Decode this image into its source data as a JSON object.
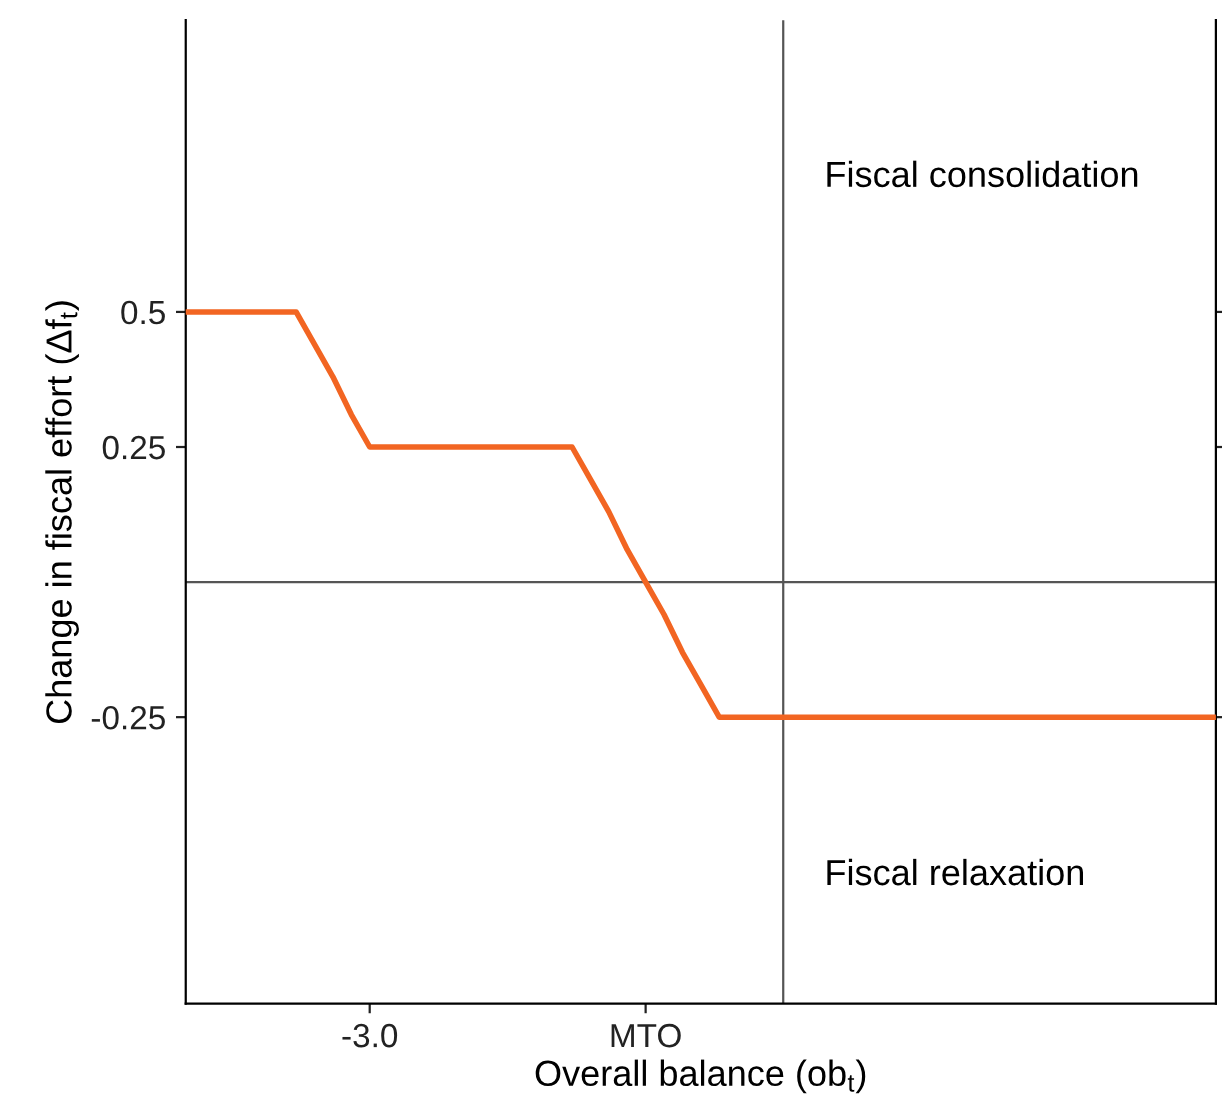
{
  "chart_data": {
    "type": "line",
    "xlabel": "Overall balance (ob$_{t}$)",
    "ylabel": "Change in fiscal effort (Δf$_{t}$)",
    "categories": [
      null,
      null,
      null,
      null,
      null,
      null,
      null,
      null,
      null,
      null,
      "-3.0",
      null,
      null,
      null,
      null,
      null,
      null,
      null,
      null,
      null,
      null,
      null,
      null,
      null,
      null,
      "MTO",
      null,
      null,
      null,
      null,
      null,
      null,
      null,
      null,
      null,
      null,
      null,
      null,
      null,
      null,
      null,
      null,
      null,
      null,
      null,
      null,
      null,
      null,
      null,
      null,
      null,
      null,
      null,
      null,
      null,
      null,
      null
    ],
    "series": [
      {
        "color": "#f26522",
        "values": [
          0.5,
          0.5,
          0.5,
          0.5,
          0.5,
          0.5,
          0.5,
          0.44,
          0.38,
          0.31,
          0.25,
          0.25,
          0.25,
          0.25,
          0.25,
          0.25,
          0.25,
          0.25,
          0.25,
          0.25,
          0.25,
          0.25,
          0.19,
          0.13,
          0.06,
          0,
          -0.06,
          -0.13,
          -0.19,
          -0.25,
          -0.25,
          -0.25,
          -0.25,
          -0.25,
          -0.25,
          -0.25,
          -0.25,
          -0.25,
          -0.25,
          -0.25,
          -0.25,
          -0.25,
          -0.25,
          -0.25,
          -0.25,
          -0.25,
          -0.25,
          -0.25,
          -0.25,
          -0.25,
          -0.25,
          -0.25,
          -0.25,
          -0.25,
          -0.25,
          -0.25,
          -0.25
        ]
      }
    ],
    "ylim": [
      -0.78,
      1.04
    ],
    "yticks": [
      0.5,
      0.25,
      {
        "value": -0.25,
        "label": "-0.25"
      }
    ],
    "ref_lines": [
      {
        "axis": "y",
        "value": 0,
        "color": "#555555"
      }
    ],
    "annotations": [
      "Fiscal consolidation",
      "Fiscal relaxation"
    ],
    "grid": false,
    "legend": false,
    "marker": "none",
    "line_style": "solid"
  }
}
